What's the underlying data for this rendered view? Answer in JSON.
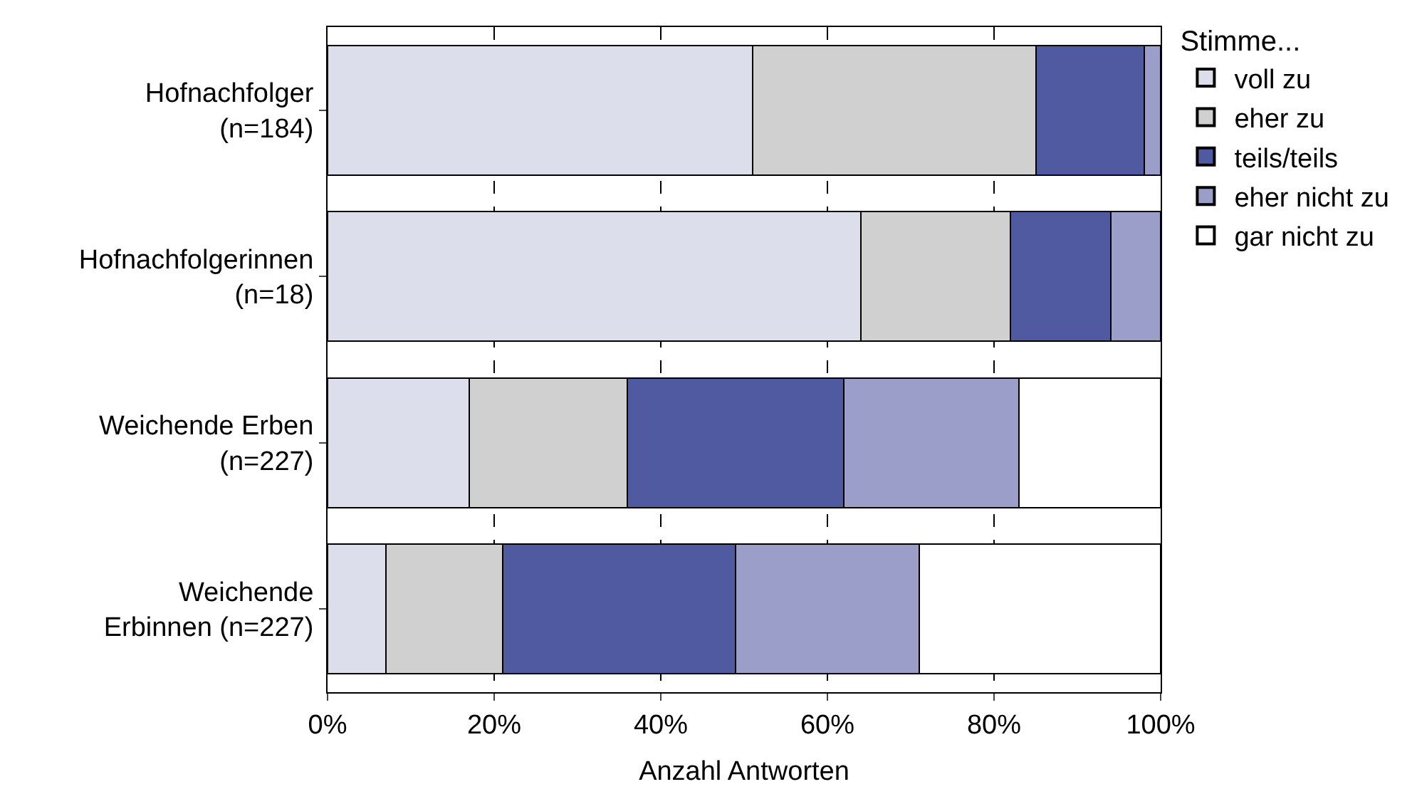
{
  "chart_data": {
    "type": "bar",
    "orientation": "horizontal",
    "stacked": true,
    "categories": [
      "Hofnachfolger\n(n=184)",
      "Hofnachfolgerinnen\n(n=18)",
      "Weichende Erben\n(n=227)",
      "Weichende\nErbinnen (n=227)"
    ],
    "series": [
      {
        "name": "voll zu",
        "color": "#dcdeeb",
        "values": [
          51,
          64,
          17,
          7
        ]
      },
      {
        "name": "eher zu",
        "color": "#d0d0d0",
        "values": [
          34,
          18,
          19,
          14
        ]
      },
      {
        "name": "teils/teils",
        "color": "#4f5aa0",
        "values": [
          13,
          12,
          26,
          28
        ]
      },
      {
        "name": "eher nicht zu",
        "color": "#9a9ec8",
        "values": [
          2,
          6,
          21,
          22
        ]
      },
      {
        "name": "gar nicht zu",
        "color": "#ffffff",
        "values": [
          0,
          0,
          17,
          29
        ]
      }
    ],
    "xlabel": "Anzahl Antworten",
    "legend_title": "Stimme...",
    "xlim": [
      0,
      100
    ],
    "xticks": [
      {
        "value": 0,
        "label": "0%"
      },
      {
        "value": 20,
        "label": "20%"
      },
      {
        "value": 40,
        "label": "40%"
      },
      {
        "value": 60,
        "label": "60%"
      },
      {
        "value": 80,
        "label": "80%"
      },
      {
        "value": 100,
        "label": "100%"
      }
    ],
    "grid": "x",
    "legend": "right"
  }
}
